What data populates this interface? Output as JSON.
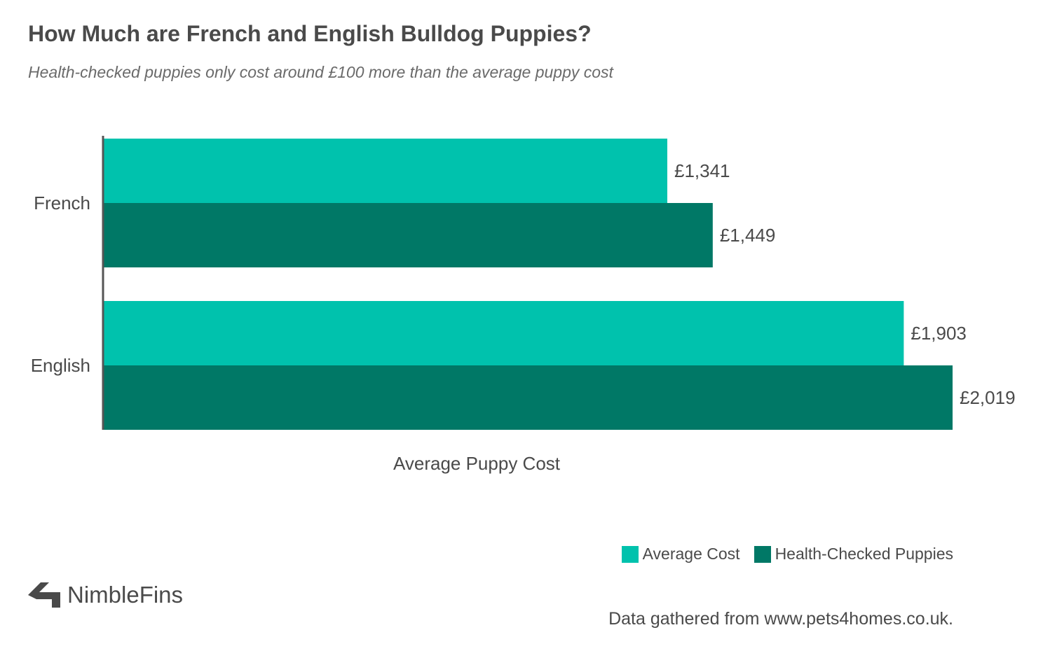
{
  "header": {
    "title": "How Much are French and English Bulldog Puppies?",
    "subtitle": "Health-checked puppies only cost around £100 more than the average puppy cost"
  },
  "chart_data": {
    "type": "bar",
    "orientation": "horizontal",
    "categories": [
      "French",
      "English"
    ],
    "series": [
      {
        "name": "Average Cost",
        "values": [
          1341,
          1903
        ],
        "color": "#00c2ad",
        "labels": [
          "£1,341",
          "£1,903"
        ]
      },
      {
        "name": "Health-Checked Puppies",
        "values": [
          1449,
          2019
        ],
        "color": "#007866",
        "labels": [
          "£1,449",
          "£2,019"
        ]
      }
    ],
    "xlabel": "Average Puppy Cost",
    "xlim": [
      0,
      2019
    ],
    "grid": false,
    "legend_position": "bottom-right"
  },
  "footer": {
    "brand": "NimbleFins",
    "source": "Data gathered from www.pets4homes.co.uk.",
    "brand_color": "#4a4a4a"
  }
}
